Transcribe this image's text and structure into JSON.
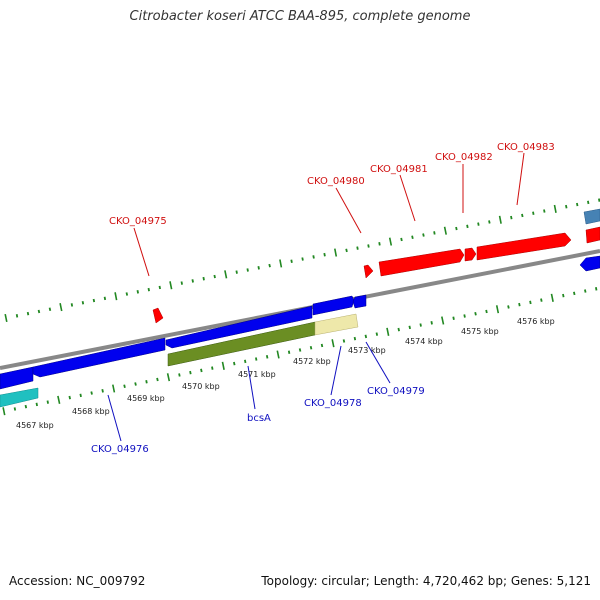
{
  "title": "Citrobacter koseri ATCC BAA-895, complete genome",
  "footer": {
    "accession": "Accession: NC_009792",
    "summary": "Topology: circular; Length: 4,720,462 bp; Genes: 5,121"
  },
  "colors": {
    "forward_genes": "#ff0000",
    "reverse_genes": "#0000ee",
    "backbone": "#888888",
    "ticks": "#228822",
    "operon_green": "#6b8e23",
    "pale_gene": "#eee8aa",
    "cyan_gene": "#20c0c0",
    "steel_gene": "#4682b4",
    "forward_label": "#d01010",
    "reverse_label": "#1010c0"
  },
  "kbp_labels": [
    "4567 kbp",
    "4568 kbp",
    "4569 kbp",
    "4570 kbp",
    "4571 kbp",
    "4572 kbp",
    "4573 kbp",
    "4574 kbp",
    "4575 kbp",
    "4576 kbp"
  ],
  "forward_gene_labels": [
    "CKO_04975",
    "CKO_04980",
    "CKO_04981",
    "CKO_04982",
    "CKO_04983"
  ],
  "reverse_gene_labels": [
    "CKO_04976",
    "bcsA",
    "CKO_04978",
    "CKO_04979"
  ]
}
